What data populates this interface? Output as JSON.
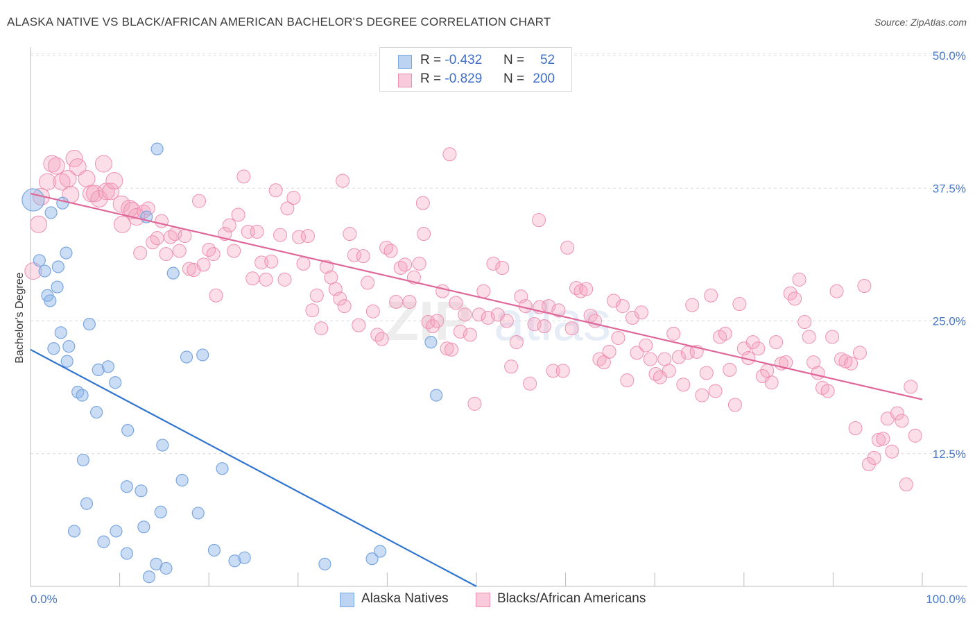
{
  "title": "ALASKA NATIVE VS BLACK/AFRICAN AMERICAN BACHELOR'S DEGREE CORRELATION CHART",
  "source": "Source: ZipAtlas.com",
  "watermark": {
    "zip": "ZIP",
    "atlas": "atlas"
  },
  "legend_top": [
    {
      "r_label": "R =",
      "r_value": "-0.432",
      "n_label": "N =",
      "n_value": "52"
    },
    {
      "r_label": "R =",
      "r_value": "-0.829",
      "n_label": "N =",
      "n_value": "200"
    }
  ],
  "chart_data": {
    "type": "scatter",
    "title": "ALASKA NATIVE VS BLACK/AFRICAN AMERICAN BACHELOR'S DEGREE CORRELATION CHART",
    "xlabel": "",
    "ylabel": "Bachelor's Degree",
    "xlim": [
      0,
      100
    ],
    "ylim": [
      0,
      50
    ],
    "x_tick_labels": [
      "0.0%",
      "100.0%"
    ],
    "y_ticks": [
      12.5,
      25.0,
      37.5,
      50.0
    ],
    "y_tick_labels": [
      "12.5%",
      "25.0%",
      "37.5%",
      "50.0%"
    ],
    "grid": true,
    "legend_position": "bottom",
    "colors": {
      "alaska": "#7aa7e0",
      "black": "#f08fb0",
      "alaska_line": "#2f74d0",
      "black_line": "#e0679a"
    },
    "series": [
      {
        "name": "Alaska Natives",
        "trend": {
          "x": [
            0,
            50
          ],
          "y": [
            22.3,
            0
          ]
        },
        "points": [
          [
            0.3,
            36.4
          ],
          [
            1.6,
            29.7
          ],
          [
            1.0,
            30.7
          ],
          [
            2.3,
            35.2
          ],
          [
            3.6,
            36.1
          ],
          [
            4.0,
            31.4
          ],
          [
            1.9,
            27.4
          ],
          [
            2.2,
            26.9
          ],
          [
            3.1,
            30.1
          ],
          [
            3.0,
            28.2
          ],
          [
            3.4,
            23.9
          ],
          [
            2.6,
            22.4
          ],
          [
            4.3,
            22.6
          ],
          [
            4.1,
            21.2
          ],
          [
            6.6,
            24.7
          ],
          [
            7.6,
            20.4
          ],
          [
            8.7,
            20.7
          ],
          [
            9.5,
            19.2
          ],
          [
            5.3,
            18.3
          ],
          [
            5.8,
            18.0
          ],
          [
            7.4,
            16.4
          ],
          [
            10.9,
            14.7
          ],
          [
            14.2,
            41.2
          ],
          [
            13.0,
            34.8
          ],
          [
            16.0,
            29.5
          ],
          [
            17.5,
            21.6
          ],
          [
            19.3,
            21.8
          ],
          [
            14.8,
            13.3
          ],
          [
            5.9,
            11.9
          ],
          [
            12.4,
            9.0
          ],
          [
            17.0,
            10.0
          ],
          [
            10.8,
            9.4
          ],
          [
            6.3,
            7.8
          ],
          [
            14.6,
            7.0
          ],
          [
            18.8,
            6.9
          ],
          [
            21.5,
            11.1
          ],
          [
            4.9,
            5.2
          ],
          [
            8.2,
            4.2
          ],
          [
            9.6,
            5.2
          ],
          [
            10.8,
            3.1
          ],
          [
            12.7,
            5.6
          ],
          [
            14.1,
            2.1
          ],
          [
            15.2,
            1.7
          ],
          [
            13.3,
            0.9
          ],
          [
            20.6,
            3.4
          ],
          [
            22.9,
            2.4
          ],
          [
            24.0,
            2.7
          ],
          [
            33.0,
            2.1
          ],
          [
            38.3,
            2.6
          ],
          [
            39.2,
            3.3
          ],
          [
            44.9,
            23.0
          ],
          [
            45.5,
            18.0
          ]
        ]
      },
      {
        "name": "Blacks/African Americans",
        "trend": {
          "x": [
            0,
            100
          ],
          "y": [
            37.0,
            17.6
          ]
        },
        "points": [
          [
            0.3,
            29.7
          ],
          [
            0.9,
            34.1
          ],
          [
            1.2,
            36.7
          ],
          [
            1.9,
            38.1
          ],
          [
            2.4,
            39.8
          ],
          [
            2.9,
            39.6
          ],
          [
            3.5,
            38.1
          ],
          [
            4.2,
            38.4
          ],
          [
            4.5,
            36.9
          ],
          [
            4.9,
            40.3
          ],
          [
            5.3,
            39.5
          ],
          [
            6.3,
            38.4
          ],
          [
            6.8,
            37.0
          ],
          [
            7.2,
            37.0
          ],
          [
            7.7,
            36.5
          ],
          [
            8.2,
            39.8
          ],
          [
            8.5,
            37.2
          ],
          [
            9.0,
            37.2
          ],
          [
            9.4,
            38.2
          ],
          [
            10.2,
            36.0
          ],
          [
            10.3,
            34.1
          ],
          [
            11.1,
            35.6
          ],
          [
            11.4,
            35.4
          ],
          [
            11.9,
            34.8
          ],
          [
            12.3,
            31.4
          ],
          [
            12.7,
            35.3
          ],
          [
            13.2,
            35.6
          ],
          [
            13.7,
            32.4
          ],
          [
            14.2,
            32.8
          ],
          [
            14.7,
            34.4
          ],
          [
            15.2,
            31.3
          ],
          [
            15.7,
            32.9
          ],
          [
            16.2,
            33.2
          ],
          [
            16.7,
            31.6
          ],
          [
            17.3,
            33.0
          ],
          [
            17.8,
            29.9
          ],
          [
            18.3,
            29.8
          ],
          [
            18.9,
            36.3
          ],
          [
            19.4,
            30.3
          ],
          [
            20.0,
            31.7
          ],
          [
            20.5,
            31.3
          ],
          [
            20.8,
            27.4
          ],
          [
            21.8,
            33.2
          ],
          [
            22.3,
            34.0
          ],
          [
            22.8,
            31.6
          ],
          [
            23.3,
            35.0
          ],
          [
            23.9,
            38.6
          ],
          [
            24.4,
            33.4
          ],
          [
            24.9,
            29.0
          ],
          [
            25.4,
            33.4
          ],
          [
            25.9,
            30.5
          ],
          [
            26.4,
            28.9
          ],
          [
            27.0,
            30.6
          ],
          [
            27.5,
            37.3
          ],
          [
            28.0,
            33.1
          ],
          [
            28.5,
            28.9
          ],
          [
            28.8,
            35.6
          ],
          [
            29.5,
            36.6
          ],
          [
            30.1,
            32.9
          ],
          [
            30.6,
            30.4
          ],
          [
            31.1,
            33.0
          ],
          [
            31.6,
            26.0
          ],
          [
            32.1,
            27.4
          ],
          [
            32.6,
            24.3
          ],
          [
            33.2,
            30.1
          ],
          [
            33.7,
            29.1
          ],
          [
            34.2,
            28.0
          ],
          [
            34.7,
            27.1
          ],
          [
            35.2,
            26.4
          ],
          [
            35.8,
            33.2
          ],
          [
            36.3,
            31.2
          ],
          [
            36.8,
            24.6
          ],
          [
            37.3,
            31.1
          ],
          [
            37.8,
            28.6
          ],
          [
            38.4,
            25.9
          ],
          [
            38.9,
            23.7
          ],
          [
            39.4,
            23.3
          ],
          [
            39.9,
            31.9
          ],
          [
            40.4,
            31.6
          ],
          [
            41.0,
            26.8
          ],
          [
            41.5,
            30.0
          ],
          [
            42.0,
            30.3
          ],
          [
            42.5,
            26.8
          ],
          [
            43.0,
            29.1
          ],
          [
            43.6,
            30.4
          ],
          [
            44.1,
            33.2
          ],
          [
            44.6,
            24.9
          ],
          [
            45.1,
            24.5
          ],
          [
            45.6,
            25.0
          ],
          [
            46.2,
            27.8
          ],
          [
            46.7,
            22.4
          ],
          [
            47.2,
            22.3
          ],
          [
            47.7,
            26.7
          ],
          [
            48.2,
            24.0
          ],
          [
            48.7,
            25.6
          ],
          [
            49.3,
            23.7
          ],
          [
            49.8,
            17.2
          ],
          [
            50.3,
            25.6
          ],
          [
            50.8,
            27.8
          ],
          [
            51.3,
            25.3
          ],
          [
            51.9,
            30.4
          ],
          [
            52.4,
            25.6
          ],
          [
            52.9,
            30.0
          ],
          [
            53.4,
            25.0
          ],
          [
            53.9,
            20.7
          ],
          [
            54.5,
            23.0
          ],
          [
            55.0,
            27.3
          ],
          [
            55.5,
            26.4
          ],
          [
            56.0,
            19.1
          ],
          [
            56.5,
            24.7
          ],
          [
            57.1,
            26.3
          ],
          [
            57.6,
            24.5
          ],
          [
            58.1,
            26.4
          ],
          [
            58.6,
            20.3
          ],
          [
            59.2,
            26.0
          ],
          [
            59.7,
            20.3
          ],
          [
            60.2,
            31.9
          ],
          [
            60.7,
            24.3
          ],
          [
            61.2,
            28.1
          ],
          [
            61.7,
            27.8
          ],
          [
            62.3,
            28.0
          ],
          [
            62.8,
            25.5
          ],
          [
            63.3,
            25.0
          ],
          [
            63.8,
            21.4
          ],
          [
            64.3,
            21.1
          ],
          [
            64.9,
            22.1
          ],
          [
            65.4,
            26.9
          ],
          [
            65.9,
            23.4
          ],
          [
            66.4,
            26.4
          ],
          [
            66.9,
            19.4
          ],
          [
            67.5,
            25.3
          ],
          [
            68.0,
            22.0
          ],
          [
            68.5,
            25.8
          ],
          [
            69.0,
            22.7
          ],
          [
            69.5,
            21.4
          ],
          [
            70.1,
            20.0
          ],
          [
            70.6,
            19.7
          ],
          [
            71.1,
            21.4
          ],
          [
            71.6,
            20.3
          ],
          [
            72.1,
            23.8
          ],
          [
            72.7,
            21.6
          ],
          [
            73.2,
            19.0
          ],
          [
            73.7,
            22.0
          ],
          [
            74.2,
            26.5
          ],
          [
            74.7,
            22.1
          ],
          [
            75.3,
            18.0
          ],
          [
            75.8,
            20.1
          ],
          [
            76.3,
            27.4
          ],
          [
            76.8,
            18.4
          ],
          [
            77.3,
            23.5
          ],
          [
            77.9,
            23.8
          ],
          [
            78.4,
            20.4
          ],
          [
            79.0,
            17.1
          ],
          [
            79.5,
            26.6
          ],
          [
            80.0,
            22.4
          ],
          [
            80.5,
            21.5
          ],
          [
            81.0,
            23.0
          ],
          [
            81.6,
            22.4
          ],
          [
            82.1,
            19.8
          ],
          [
            82.6,
            20.3
          ],
          [
            83.1,
            19.2
          ],
          [
            83.6,
            23.0
          ],
          [
            84.2,
            21.0
          ],
          [
            84.7,
            21.1
          ],
          [
            85.2,
            27.6
          ],
          [
            85.7,
            27.1
          ],
          [
            86.2,
            28.9
          ],
          [
            86.8,
            24.9
          ],
          [
            87.3,
            23.5
          ],
          [
            87.8,
            21.1
          ],
          [
            88.3,
            20.1
          ],
          [
            88.8,
            18.7
          ],
          [
            89.4,
            18.4
          ],
          [
            89.9,
            23.5
          ],
          [
            90.4,
            27.8
          ],
          [
            90.9,
            21.4
          ],
          [
            91.4,
            21.2
          ],
          [
            92.0,
            21.0
          ],
          [
            92.5,
            14.9
          ],
          [
            93.0,
            22.0
          ],
          [
            93.5,
            28.3
          ],
          [
            94.0,
            11.5
          ],
          [
            94.6,
            12.1
          ],
          [
            95.1,
            13.8
          ],
          [
            95.6,
            13.9
          ],
          [
            96.1,
            15.8
          ],
          [
            96.6,
            12.7
          ],
          [
            97.2,
            16.3
          ],
          [
            97.7,
            15.6
          ],
          [
            98.2,
            9.6
          ],
          [
            98.7,
            18.8
          ],
          [
            99.2,
            14.2
          ],
          [
            47.0,
            40.7
          ],
          [
            44.0,
            36.1
          ],
          [
            57.0,
            34.5
          ],
          [
            35.0,
            38.2
          ]
        ]
      }
    ]
  },
  "legend_bottom": [
    "Alaska Natives",
    "Blacks/African Americans"
  ]
}
